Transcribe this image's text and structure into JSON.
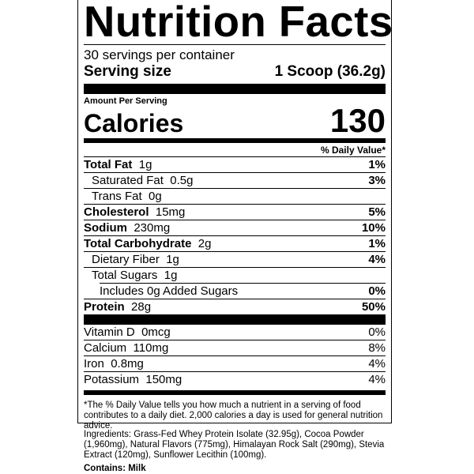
{
  "title": "Nutrition Facts",
  "servings_per_container": "30 servings per container",
  "serving_size": {
    "label": "Serving size",
    "value": "1 Scoop (36.2g)"
  },
  "amount_per_serving": "Amount Per Serving",
  "calories": {
    "label": "Calories",
    "value": "130"
  },
  "daily_value_header": "% Daily Value*",
  "nutrients": [
    {
      "name": "Total Fat",
      "amount": "1g",
      "dv": "1%"
    },
    {
      "name": "Saturated Fat",
      "amount": "0.5g",
      "dv": "3%"
    },
    {
      "name": "Trans Fat",
      "amount": "0g",
      "dv": ""
    },
    {
      "name": "Cholesterol",
      "amount": "15mg",
      "dv": "5%"
    },
    {
      "name": "Sodium",
      "amount": "230mg",
      "dv": "10%"
    },
    {
      "name": "Total Carbohydrate",
      "amount": "2g",
      "dv": "1%"
    },
    {
      "name": "Dietary Fiber",
      "amount": "1g",
      "dv": "4%"
    },
    {
      "name": "Total Sugars",
      "amount": "1g",
      "dv": ""
    },
    {
      "name": "Includes 0g Added Sugars",
      "amount": "",
      "dv": "0%"
    },
    {
      "name": "Protein",
      "amount": "28g",
      "dv": "50%"
    }
  ],
  "vitamins": [
    {
      "name": "Vitamin D",
      "amount": "0mcg",
      "dv": "0%"
    },
    {
      "name": "Calcium",
      "amount": "110mg",
      "dv": "8%"
    },
    {
      "name": "Iron",
      "amount": "0.8mg",
      "dv": "4%"
    },
    {
      "name": "Potassium",
      "amount": "150mg",
      "dv": "4%"
    }
  ],
  "footnote": "*The % Daily Value tells you how much a nutrient in a serving of food contributes to a daily diet. 2,000 calories a day is used for general nutrition advice.",
  "ingredients": "Ingredients: Grass-Fed Whey Protein Isolate (32.95g), Cocoa Powder (1,960mg), Natural Flavors (775mg), Himalayan Rock Salt (290mg), Stevia Extract (120mg), Sunflower Lecithin (100mg).",
  "contains": "Contains: Milk"
}
